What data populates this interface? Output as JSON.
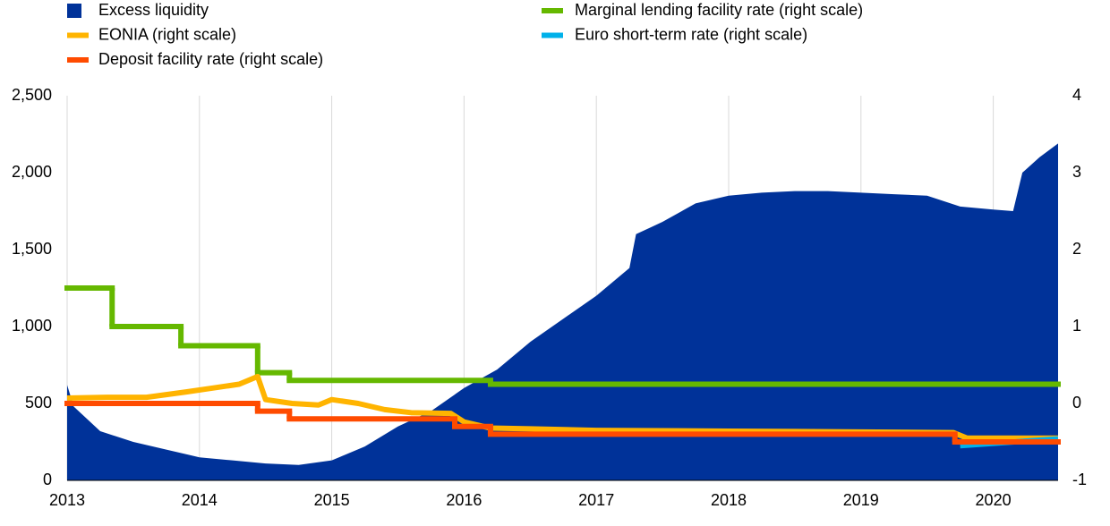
{
  "chart_data": {
    "type": "combo",
    "xlim": [
      2013,
      2020.49
    ],
    "xticks": [
      2013,
      2014,
      2015,
      2016,
      2017,
      2018,
      2019,
      2020
    ],
    "ylim": [
      0,
      2500
    ],
    "yticks": [
      0,
      500,
      {
        "value": 1000,
        "label": "1,000"
      },
      {
        "value": 1500,
        "label": "1,500"
      },
      {
        "value": 2000,
        "label": "2,000"
      },
      {
        "value": 2500,
        "label": "2,500"
      }
    ],
    "y2lim": [
      -1,
      4
    ],
    "y2ticks": [
      -1,
      0,
      1,
      2,
      3,
      4
    ],
    "xgrid": true,
    "series": [
      {
        "name": "Excess liquidity",
        "color": "#003299",
        "style": "area",
        "axis": "y",
        "x": [
          2013,
          2013.05,
          2013.25,
          2013.5,
          2013.75,
          2014,
          2014.25,
          2014.5,
          2014.75,
          2015,
          2015.25,
          2015.5,
          2015.75,
          2016,
          2016.25,
          2016.5,
          2016.75,
          2017,
          2017.25,
          2017.3,
          2017.5,
          2017.75,
          2018,
          2018.25,
          2018.5,
          2018.75,
          2019,
          2019.25,
          2019.5,
          2019.75,
          2020,
          2020.15,
          2020.22,
          2020.35,
          2020.49
        ],
        "values": [
          620,
          480,
          320,
          250,
          200,
          150,
          130,
          110,
          100,
          130,
          220,
          350,
          450,
          600,
          720,
          900,
          1050,
          1200,
          1380,
          1600,
          1680,
          1800,
          1850,
          1870,
          1880,
          1880,
          1870,
          1860,
          1850,
          1780,
          1760,
          1750,
          2000,
          2100,
          2190
        ]
      },
      {
        "name": "Marginal lending facility rate (right scale)",
        "color": "#65B800",
        "style": "step",
        "axis": "y2",
        "x": [
          2013,
          2013.34,
          2013.86,
          2014.44,
          2014.68,
          2016.2,
          2020.49
        ],
        "values": [
          1.5,
          1.0,
          0.75,
          0.4,
          0.3,
          0.25,
          0.25
        ]
      },
      {
        "name": "EONIA (right scale)",
        "color": "#FFB400",
        "style": "line",
        "axis": "y2",
        "x": [
          2013,
          2013.3,
          2013.6,
          2013.9,
          2014.1,
          2014.3,
          2014.44,
          2014.5,
          2014.7,
          2014.9,
          2015,
          2015.2,
          2015.4,
          2015.6,
          2015.9,
          2016,
          2016.2,
          2016.5,
          2017,
          2018,
          2019,
          2019.7,
          2019.8,
          2020.49
        ],
        "values": [
          0.07,
          0.08,
          0.08,
          0.15,
          0.2,
          0.25,
          0.35,
          0.05,
          0.0,
          -0.02,
          0.05,
          0.0,
          -0.08,
          -0.12,
          -0.13,
          -0.24,
          -0.32,
          -0.33,
          -0.35,
          -0.36,
          -0.37,
          -0.38,
          -0.45,
          -0.45
        ]
      },
      {
        "name": "Euro short-term rate (right scale)",
        "color": "#00B1EA",
        "style": "line",
        "axis": "y2",
        "x": [
          2019.75,
          2020.49
        ],
        "values": [
          -0.55,
          -0.46
        ]
      },
      {
        "name": "Deposit facility rate (right scale)",
        "color": "#FF4B00",
        "style": "step",
        "axis": "y2",
        "x": [
          2013,
          2014.44,
          2014.68,
          2015.93,
          2016.2,
          2019.71,
          2020.49
        ],
        "values": [
          0,
          -0.1,
          -0.2,
          -0.3,
          -0.4,
          -0.5,
          -0.5
        ]
      }
    ]
  }
}
